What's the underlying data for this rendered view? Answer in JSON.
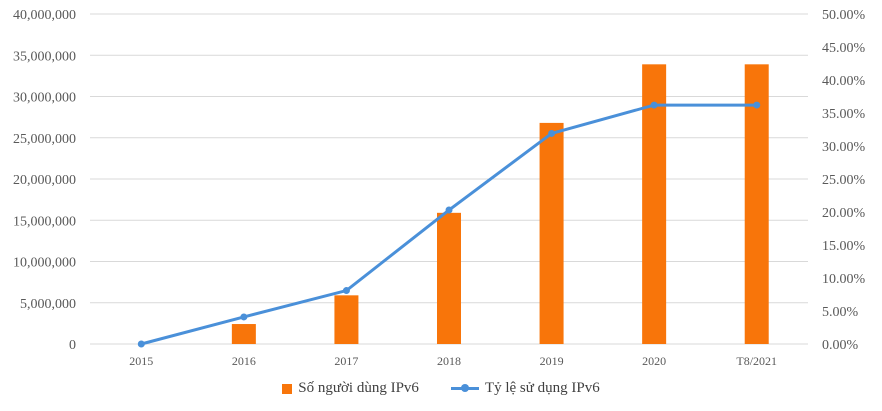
{
  "chart_data": {
    "type": "bar+line",
    "categories": [
      "2015",
      "2016",
      "2017",
      "2018",
      "2019",
      "2020",
      "T8/2021"
    ],
    "series": [
      {
        "name": "Số người dùng IPv6",
        "type": "bar",
        "axis": "left",
        "color": "#F8750A",
        "values": [
          0,
          2420000,
          5900000,
          15900000,
          26800000,
          33900000,
          33900000
        ]
      },
      {
        "name": "Tỷ lệ sử dụng IPv6",
        "type": "line",
        "axis": "right",
        "color": "#4A90D9",
        "values": [
          0,
          4.1,
          8.1,
          20.3,
          31.9,
          36.2,
          36.2
        ]
      }
    ],
    "left_axis": {
      "ylim": [
        0,
        40000000
      ],
      "ticks": [
        "0",
        "5,000,000",
        "10,000,000",
        "15,000,000",
        "20,000,000",
        "25,000,000",
        "30,000,000",
        "35,000,000",
        "40,000,000"
      ]
    },
    "right_axis": {
      "ylim": [
        0,
        50
      ],
      "ticks": [
        "0.00%",
        "5.00%",
        "10.00%",
        "15.00%",
        "20.00%",
        "25.00%",
        "30.00%",
        "35.00%",
        "40.00%",
        "45.00%",
        "50.00%"
      ]
    },
    "grid": true,
    "legend": "bottom"
  }
}
